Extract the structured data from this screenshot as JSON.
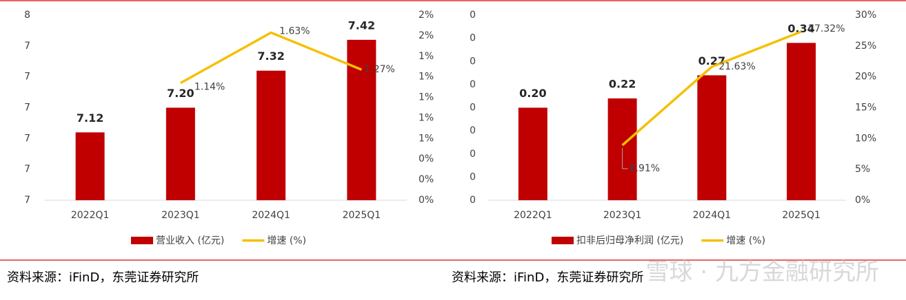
{
  "chart_data": [
    {
      "type": "combo",
      "categories": [
        "2022Q1",
        "2023Q1",
        "2024Q1",
        "2025Q1"
      ],
      "series": [
        {
          "name": "营业收入 (亿元)",
          "type": "bar",
          "color": "#c00000",
          "values": [
            7.12,
            7.2,
            7.32,
            7.42
          ],
          "value_labels": [
            "7.12",
            "7.20",
            "7.32",
            "7.42"
          ]
        },
        {
          "name": "增速 (%)",
          "type": "line",
          "axis": "y2",
          "color": "#f5c000",
          "values": [
            null,
            1.14,
            1.63,
            1.27
          ],
          "value_labels": [
            null,
            "1.14%",
            "1.63%",
            "1.27%"
          ]
        }
      ],
      "ylim": [
        6.9,
        7.5
      ],
      "yticks": [
        {
          "value": 6.9,
          "label": "7"
        },
        {
          "value": 7.0,
          "label": "7"
        },
        {
          "value": 7.1,
          "label": "7"
        },
        {
          "value": 7.2,
          "label": "7"
        },
        {
          "value": 7.3,
          "label": "7"
        },
        {
          "value": 7.4,
          "label": "7"
        },
        {
          "value": 7.5,
          "label": "8"
        }
      ],
      "y2lim": [
        0,
        1.8
      ],
      "y2ticks": [
        {
          "value": 0,
          "label": "0%"
        },
        {
          "value": 0.2,
          "label": "0%"
        },
        {
          "value": 0.4,
          "label": "0%"
        },
        {
          "value": 0.6,
          "label": "1%"
        },
        {
          "value": 0.8,
          "label": "1%"
        },
        {
          "value": 1.0,
          "label": "1%"
        },
        {
          "value": 1.2,
          "label": "1%"
        },
        {
          "value": 1.4,
          "label": "1%"
        },
        {
          "value": 1.6,
          "label": "2%"
        },
        {
          "value": 1.8,
          "label": "2%"
        }
      ]
    },
    {
      "type": "combo",
      "categories": [
        "2022Q1",
        "2023Q1",
        "2024Q1",
        "2025Q1"
      ],
      "series": [
        {
          "name": "扣非后归母净利润 (亿元)",
          "type": "bar",
          "color": "#c00000",
          "values": [
            0.2,
            0.22,
            0.27,
            0.34
          ],
          "value_labels": [
            "0.20",
            "0.22",
            "0.27",
            "0.34"
          ]
        },
        {
          "name": "增速 (%)",
          "type": "line",
          "axis": "y2",
          "color": "#f5c000",
          "values": [
            null,
            8.91,
            21.63,
            27.32
          ],
          "value_labels": [
            null,
            "8.91%",
            "21.63%",
            "27.32%"
          ]
        }
      ],
      "ylim": [
        0,
        0.4
      ],
      "yticks": [
        0,
        {
          "value": 0.05,
          "label": "0"
        },
        {
          "value": 0.1,
          "label": "0"
        },
        {
          "value": 0.15,
          "label": "0"
        },
        {
          "value": 0.2,
          "label": "0"
        },
        {
          "value": 0.25,
          "label": "0"
        },
        {
          "value": 0.3,
          "label": "0"
        },
        {
          "value": 0.35,
          "label": "0"
        },
        {
          "value": 0.4,
          "label": "0"
        }
      ],
      "y2lim": [
        0,
        30
      ],
      "y2ticks": [
        {
          "value": 0,
          "label": "0%"
        },
        {
          "value": 5,
          "label": "5%"
        },
        {
          "value": 10,
          "label": "10%"
        },
        {
          "value": 15,
          "label": "15%"
        },
        {
          "value": 20,
          "label": "20%"
        },
        {
          "value": 25,
          "label": "25%"
        },
        {
          "value": 30,
          "label": "30%"
        }
      ]
    }
  ],
  "sources": [
    "资料来源：iFinD，东莞证券研究所",
    "资料来源：iFinD，东莞证券研究所"
  ],
  "watermark": "雪球 · 九方金融研究所"
}
